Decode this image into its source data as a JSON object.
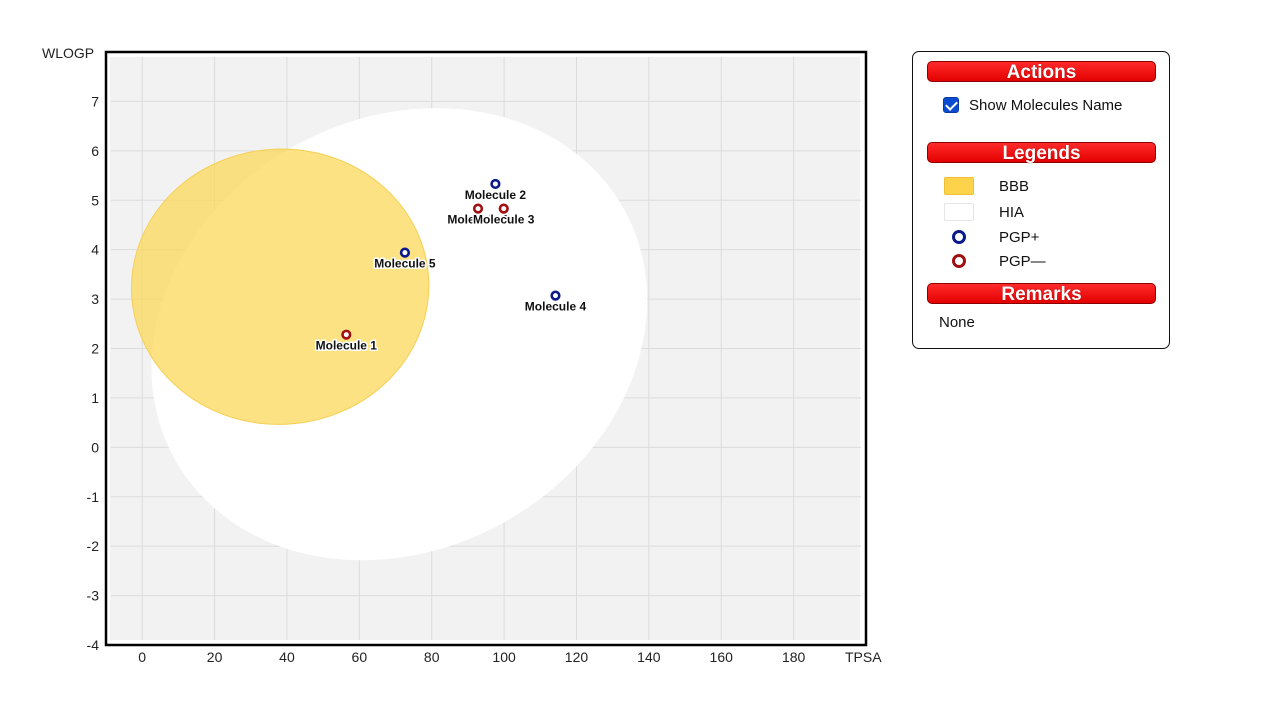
{
  "chart_data": {
    "type": "scatter",
    "xlabel": "TPSA",
    "ylabel": "WLOGP",
    "xlim": [
      -10,
      200
    ],
    "ylim": [
      -4,
      8
    ],
    "x_ticks": [
      0,
      20,
      40,
      60,
      80,
      100,
      120,
      140,
      160,
      180
    ],
    "y_ticks": [
      -4,
      -3,
      -2,
      -1,
      0,
      1,
      2,
      3,
      4,
      5,
      6,
      7
    ],
    "grid": true,
    "regions": [
      {
        "name": "HIA",
        "color": "#ffffff",
        "ellipse": {
          "cx": 71.05,
          "cy": 2.29,
          "rx": 142.08,
          "ry": 8.72,
          "angle": -29.2
        }
      },
      {
        "name": "BBB",
        "color": "#fcd85a",
        "ellipse": {
          "cx": 38.12,
          "cy": 3.25,
          "rx": 82.17,
          "ry": 5.57,
          "angle": -3.4
        }
      }
    ],
    "series": [
      {
        "name": "PGP+",
        "color": "#0a1a8a",
        "points": [
          {
            "label": "Molecule 2",
            "x": 97.6,
            "y": 5.33
          },
          {
            "label": "Molecule 5",
            "x": 72.6,
            "y": 3.94
          },
          {
            "label": "Molecule 4",
            "x": 114.2,
            "y": 3.07
          }
        ]
      },
      {
        "name": "PGP—",
        "color": "#a01010",
        "points": [
          {
            "label": "Molecule 6",
            "x": 92.8,
            "y": 4.83
          },
          {
            "label": "Molecule 3",
            "x": 99.9,
            "y": 4.83
          },
          {
            "label": "Molecule 1",
            "x": 56.4,
            "y": 2.28
          }
        ]
      }
    ]
  },
  "panel": {
    "actions_title": "Actions",
    "show_names_label": "Show Molecules Name",
    "show_names_checked": true,
    "legends_title": "Legends",
    "legend_items": [
      "BBB",
      "HIA",
      "PGP+",
      "PGP—"
    ],
    "remarks_title": "Remarks",
    "remarks_text": "None"
  }
}
